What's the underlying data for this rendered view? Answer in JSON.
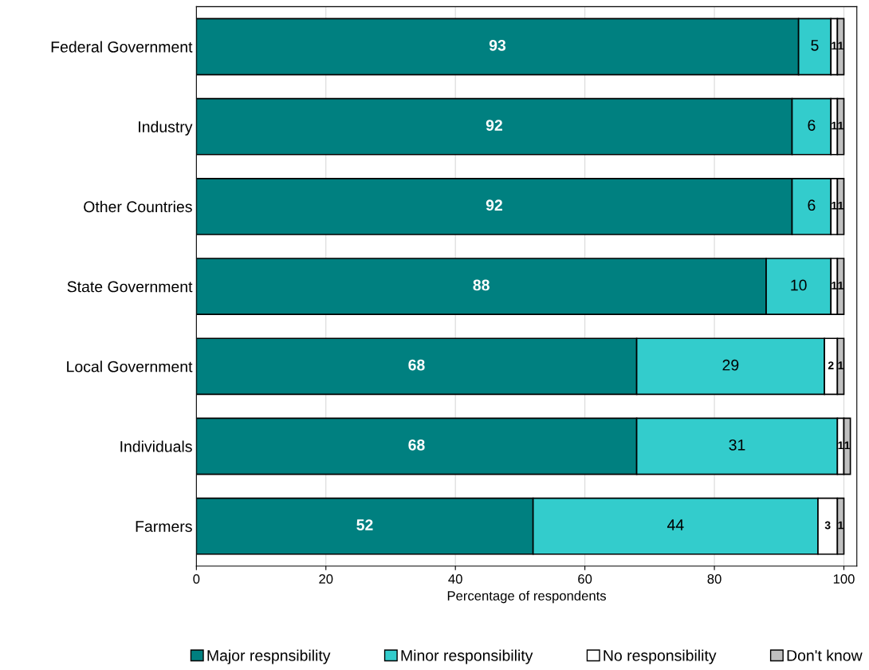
{
  "chart_data": {
    "type": "bar",
    "orientation": "horizontal",
    "stacked": true,
    "xlabel": "Percentage of respondents",
    "categories": [
      "Federal Government",
      "Industry",
      "Other Countries",
      "State Government",
      "Local Government",
      "Individuals",
      "Farmers"
    ],
    "series": [
      {
        "name": "Major respnsibility",
        "color": "#008080",
        "values": [
          93,
          92,
          92,
          88,
          68,
          68,
          52
        ]
      },
      {
        "name": "Minor responsibility",
        "color": "#33cccc",
        "values": [
          5,
          6,
          6,
          10,
          29,
          31,
          44
        ]
      },
      {
        "name": "No responsibility",
        "color": "#ffffff",
        "values": [
          1,
          1,
          1,
          1,
          2,
          1,
          3
        ]
      },
      {
        "name": "Don't know",
        "color": "#c0c0c0",
        "values": [
          1,
          1,
          1,
          1,
          1,
          1,
          1
        ]
      }
    ],
    "xlim": [
      0,
      102
    ],
    "xticks": [
      0,
      20,
      40,
      60,
      80,
      100
    ],
    "grid": "x",
    "legend": "bottom",
    "data_labels": true
  }
}
